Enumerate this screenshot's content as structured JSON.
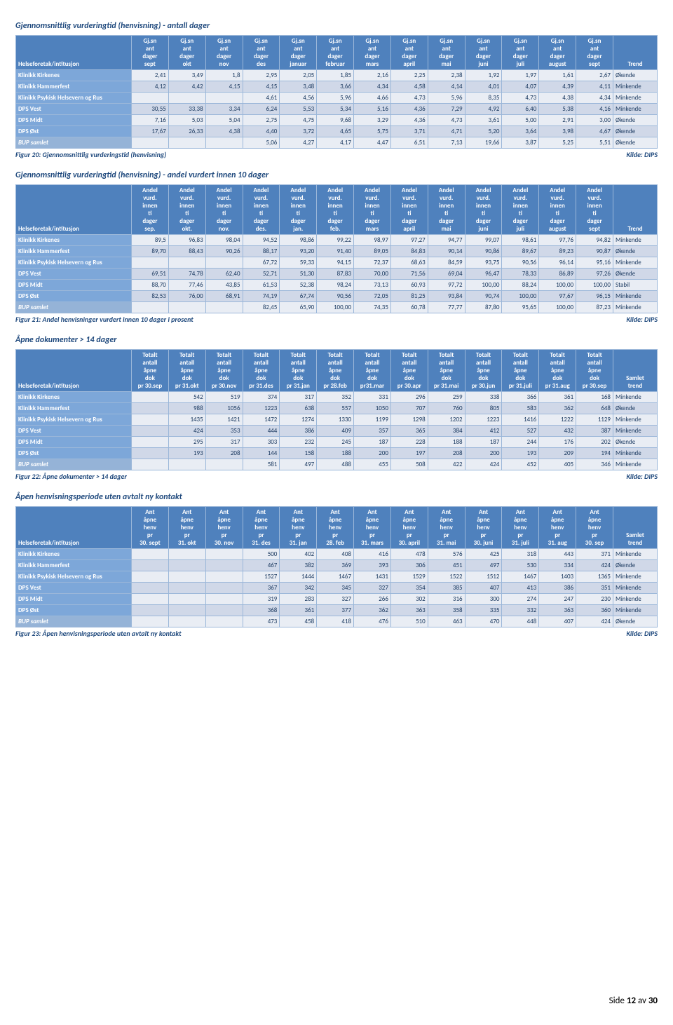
{
  "page_footer": {
    "prefix": "Side ",
    "num": "12",
    "mid": " av ",
    "total": "30"
  },
  "sections": [
    {
      "title": "Gjennomsnittlig vurderingtid (henvisning) - antall dager",
      "caption_left": "Figur 20: Gjennomsnittlig vurderingstid (henvisning)",
      "caption_right": "Kilde: DIPS",
      "first_col_label": "Helseforetak/intitusjon",
      "last_col_label": "Trend",
      "months": [
        "sept",
        "okt",
        "nov",
        "des",
        "januar",
        "februar",
        "mars",
        "april",
        "mai",
        "juni",
        "juli",
        "august",
        "sept"
      ],
      "month_header_prefix": "Gj.sn ant dager",
      "rows": [
        {
          "name": "Klinikk Kirkenes",
          "vals": [
            "2,41",
            "3,49",
            "1,8",
            "2,95",
            "2,05",
            "1,85",
            "2,16",
            "2,25",
            "2,38",
            "1,92",
            "1,97",
            "1,61",
            "2,67"
          ],
          "trend": "Økende",
          "alt": false
        },
        {
          "name": "Klinikk Hammerfest",
          "vals": [
            "4,12",
            "4,42",
            "4,15",
            "4,15",
            "3,48",
            "3,66",
            "4,34",
            "4,58",
            "4,14",
            "4,01",
            "4,07",
            "4,39",
            "4,11"
          ],
          "trend": "Minkende",
          "alt": true
        },
        {
          "name": "Klinikk Psykisk Helsevern og Rus",
          "vals": [
            "",
            "",
            "",
            "4,61",
            "4,56",
            "5,96",
            "4,66",
            "4,73",
            "5,96",
            "8,35",
            "4,73",
            "4,38",
            "4,34"
          ],
          "trend": "Minkende",
          "alt": false
        },
        {
          "name": "DPS Vest",
          "vals": [
            "30,55",
            "33,38",
            "3,34",
            "6,24",
            "5,53",
            "5,34",
            "5,16",
            "4,36",
            "7,29",
            "4,92",
            "6,40",
            "5,38",
            "4,16"
          ],
          "trend": "Minkende",
          "alt": true
        },
        {
          "name": "DPS Midt",
          "vals": [
            "7,16",
            "5,03",
            "5,04",
            "2,75",
            "4,75",
            "9,68",
            "3,29",
            "4,36",
            "4,73",
            "3,61",
            "5,00",
            "2,91",
            "3,00"
          ],
          "trend": "Økende",
          "alt": false
        },
        {
          "name": "DPS Øst",
          "vals": [
            "17,67",
            "26,33",
            "4,38",
            "4,40",
            "3,72",
            "4,65",
            "5,75",
            "3,71",
            "4,71",
            "5,20",
            "3,64",
            "3,98",
            "4,67"
          ],
          "trend": "Økende",
          "alt": true
        },
        {
          "name": "BUP samlet",
          "vals": [
            "",
            "",
            "",
            "5,06",
            "4,27",
            "4,17",
            "4,47",
            "6,51",
            "7,13",
            "19,66",
            "3,87",
            "5,25",
            "5,51"
          ],
          "trend": "Økende",
          "alt": false,
          "bup": true
        }
      ]
    },
    {
      "title": "Gjennomsnittlig vurderingtid (henvisning) - andel vurdert innen 10 dager",
      "caption_left": "Figur 21: Andel henvisninger vurdert innen 10 dager i prosent",
      "caption_right": "Kilde: DIPS",
      "first_col_label": "Helseforetak/intitusjon",
      "last_col_label": "Trend",
      "months": [
        "sep.",
        "okt.",
        "nov.",
        "des.",
        "jan.",
        "feb.",
        "mars",
        "april",
        "mai",
        "juni",
        "juli",
        "august",
        "sept"
      ],
      "month_header_prefix": "Andel vurd. innen ti dager",
      "rows": [
        {
          "name": "Klinikk Kirkenes",
          "vals": [
            "89,5",
            "96,83",
            "98,04",
            "94,52",
            "98,86",
            "99,22",
            "98,97",
            "97,27",
            "94,77",
            "99,07",
            "98,61",
            "97,76",
            "94,82"
          ],
          "trend": "Minkende",
          "alt": false
        },
        {
          "name": "Klinikk Hammerfest",
          "vals": [
            "89,70",
            "88,43",
            "90,26",
            "88,17",
            "93,20",
            "91,40",
            "89,05",
            "84,83",
            "90,14",
            "90,86",
            "89,67",
            "89,23",
            "90,87"
          ],
          "trend": "Økende",
          "alt": true
        },
        {
          "name": "Klinikk Psykisk Helsevern og Rus",
          "vals": [
            "",
            "",
            "",
            "67,72",
            "59,33",
            "94,15",
            "72,37",
            "68,63",
            "84,59",
            "93,75",
            "90,56",
            "96,14",
            "95,16"
          ],
          "trend": "Minkende",
          "alt": false
        },
        {
          "name": "DPS Vest",
          "vals": [
            "69,51",
            "74,78",
            "62,40",
            "52,71",
            "51,30",
            "87,83",
            "70,00",
            "71,56",
            "69,04",
            "96,47",
            "78,33",
            "86,89",
            "97,26"
          ],
          "trend": "Økende",
          "alt": true
        },
        {
          "name": "DPS Midt",
          "vals": [
            "88,70",
            "77,46",
            "43,85",
            "61,53",
            "52,38",
            "98,24",
            "73,13",
            "60,93",
            "97,72",
            "100,00",
            "88,24",
            "100,00",
            "100,00"
          ],
          "trend": "Stabil",
          "alt": false
        },
        {
          "name": "DPS Øst",
          "vals": [
            "82,53",
            "76,00",
            "68,91",
            "74,19",
            "67,74",
            "90,56",
            "72,05",
            "81,25",
            "93,84",
            "90,74",
            "100,00",
            "97,67",
            "96,15"
          ],
          "trend": "Minkende",
          "alt": true
        },
        {
          "name": "BUP samlet",
          "vals": [
            "",
            "",
            "",
            "82,45",
            "65,90",
            "100,00",
            "74,35",
            "60,78",
            "77,77",
            "87,80",
            "95,65",
            "100,00",
            "87,23"
          ],
          "trend": "Minkende",
          "alt": false,
          "bup": true
        }
      ]
    },
    {
      "title": "Åpne dokumenter > 14 dager",
      "caption_left": "Figur 22: Åpne dokumenter > 14 dager",
      "caption_right": "Kilde: DIPS",
      "first_col_label": "Helseforetak/intitusjon",
      "last_col_label": "Samlet trend",
      "months": [
        "pr 30.sep",
        "pr 31.okt",
        "pr 30.nov",
        "pr 31.des",
        "pr 31.jan",
        "pr 28.feb",
        "pr31.mar",
        "pr 30.apr",
        "pr 31.mai",
        "pr 30.jun",
        "pr 31.juli",
        "pr 31.aug",
        "pr 30.sep"
      ],
      "month_header_prefix": "Totalt antall åpne dok",
      "rows": [
        {
          "name": "Klinikk Kirkenes",
          "vals": [
            "",
            "542",
            "519",
            "374",
            "317",
            "352",
            "331",
            "296",
            "259",
            "338",
            "366",
            "361",
            "168"
          ],
          "trend": "Minkende",
          "alt": false
        },
        {
          "name": "Klinikk Hammerfest",
          "vals": [
            "",
            "988",
            "1056",
            "1223",
            "638",
            "557",
            "1050",
            "707",
            "760",
            "805",
            "583",
            "362",
            "648"
          ],
          "trend": "Økende",
          "alt": true
        },
        {
          "name": "Klinikk Psykisk Helsevern og Rus",
          "vals": [
            "",
            "1435",
            "1421",
            "1472",
            "1274",
            "1330",
            "1199",
            "1298",
            "1202",
            "1223",
            "1416",
            "1222",
            "1129"
          ],
          "trend": "Minkende",
          "alt": false
        },
        {
          "name": "DPS Vest",
          "vals": [
            "",
            "424",
            "353",
            "444",
            "386",
            "409",
            "357",
            "365",
            "384",
            "412",
            "527",
            "432",
            "387"
          ],
          "trend": "Minkende",
          "alt": true
        },
        {
          "name": "DPS Midt",
          "vals": [
            "",
            "295",
            "317",
            "303",
            "232",
            "245",
            "187",
            "228",
            "188",
            "187",
            "244",
            "176",
            "202"
          ],
          "trend": "Økende",
          "alt": false
        },
        {
          "name": "DPS Øst",
          "vals": [
            "",
            "193",
            "208",
            "144",
            "158",
            "188",
            "200",
            "197",
            "208",
            "200",
            "193",
            "209",
            "194"
          ],
          "trend": "Minkende",
          "alt": true
        },
        {
          "name": "BUP samlet",
          "vals": [
            "",
            "",
            "",
            "581",
            "497",
            "488",
            "455",
            "508",
            "422",
            "424",
            "452",
            "405",
            "346"
          ],
          "trend": "Minkende",
          "alt": false,
          "bup": true
        }
      ]
    },
    {
      "title": "Åpen henvisningsperiode uten avtalt ny kontakt",
      "caption_left": "Figur 23: Åpen henvisningsperiode uten avtalt ny kontakt",
      "caption_right": "Kilde: DIPS",
      "first_col_label": "Helseforetak/intitusjon",
      "last_col_label": "Samlet trend",
      "months": [
        "30. sept",
        "31. okt",
        "30. nov",
        "31. des",
        "31. jan",
        "28. feb",
        "31. mars",
        "30. april",
        "31. mai",
        "30. juni",
        "31. juli",
        "31. aug",
        "30. sep"
      ],
      "month_header_prefix": "Ant åpne henv pr",
      "rows": [
        {
          "name": "Klinikk Kirkenes",
          "vals": [
            "",
            "",
            "",
            "500",
            "402",
            "408",
            "416",
            "478",
            "576",
            "425",
            "318",
            "443",
            "371"
          ],
          "trend": "Minkende",
          "alt": false
        },
        {
          "name": "Klinikk Hammerfest",
          "vals": [
            "",
            "",
            "",
            "467",
            "382",
            "369",
            "393",
            "306",
            "451",
            "497",
            "530",
            "334",
            "424"
          ],
          "trend": "Økende",
          "alt": true
        },
        {
          "name": "Klinikk Psykisk Helsevern og Rus",
          "vals": [
            "",
            "",
            "",
            "1527",
            "1444",
            "1467",
            "1431",
            "1529",
            "1522",
            "1512",
            "1467",
            "1403",
            "1365"
          ],
          "trend": "Minkende",
          "alt": false
        },
        {
          "name": "DPS Vest",
          "vals": [
            "",
            "",
            "",
            "367",
            "342",
            "345",
            "327",
            "354",
            "385",
            "407",
            "413",
            "386",
            "351"
          ],
          "trend": "Minkende",
          "alt": true
        },
        {
          "name": "DPS Midt",
          "vals": [
            "",
            "",
            "",
            "319",
            "283",
            "327",
            "266",
            "302",
            "316",
            "300",
            "274",
            "247",
            "230"
          ],
          "trend": "Minkende",
          "alt": false
        },
        {
          "name": "DPS Øst",
          "vals": [
            "",
            "",
            "",
            "368",
            "361",
            "377",
            "362",
            "363",
            "358",
            "335",
            "332",
            "363",
            "360"
          ],
          "trend": "Minkende",
          "alt": true
        },
        {
          "name": "BUP samlet",
          "vals": [
            "",
            "",
            "",
            "473",
            "458",
            "418",
            "476",
            "510",
            "463",
            "470",
            "448",
            "407",
            "424"
          ],
          "trend": "Økende",
          "alt": false,
          "bup": true
        }
      ]
    }
  ]
}
